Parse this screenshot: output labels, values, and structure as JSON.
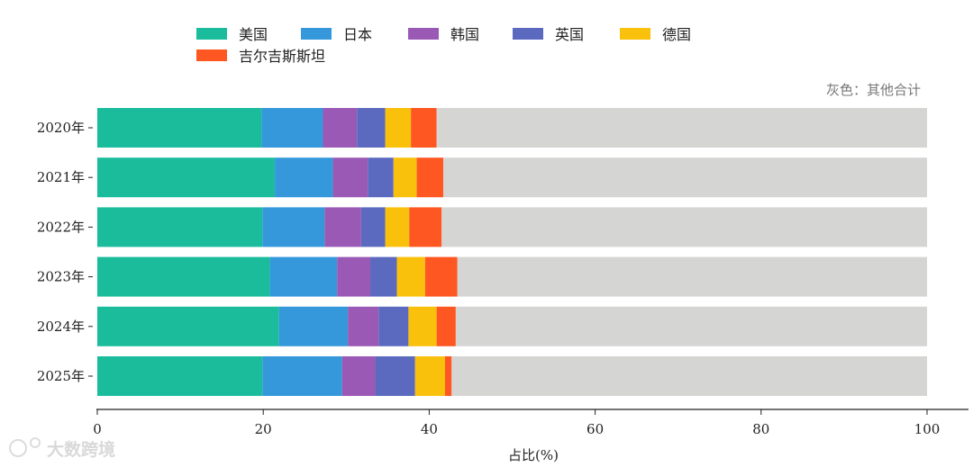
{
  "chart_data": {
    "type": "stacked-barh",
    "xlabel": "占比(%)",
    "xlim": [
      0,
      100
    ],
    "xticks": [
      0,
      20,
      40,
      60,
      80,
      100
    ],
    "note": "灰色：其他合计",
    "watermark": "大数跨境",
    "categories": [
      "2020年",
      "2021年",
      "2022年",
      "2023年",
      "2024年",
      "2025年"
    ],
    "series": [
      {
        "name": "美国",
        "color": "#1abc9c",
        "values": [
          19.8,
          21.4,
          19.9,
          20.8,
          21.9,
          19.9
        ]
      },
      {
        "name": "日本",
        "color": "#3498db",
        "values": [
          7.4,
          7.0,
          7.5,
          8.1,
          8.3,
          9.6
        ]
      },
      {
        "name": "韩国",
        "color": "#9b59b6",
        "values": [
          4.1,
          4.2,
          4.4,
          4.0,
          3.7,
          4.0
        ]
      },
      {
        "name": "英国",
        "color": "#5b6abf",
        "values": [
          3.4,
          3.1,
          2.9,
          3.2,
          3.6,
          4.8
        ]
      },
      {
        "name": "德国",
        "color": "#f9c00c",
        "values": [
          3.1,
          2.8,
          2.9,
          3.4,
          3.4,
          3.6
        ]
      },
      {
        "name": "吉尔吉斯斯坦",
        "color": "#fe5722",
        "values": [
          3.1,
          3.2,
          3.9,
          3.9,
          2.3,
          0.8
        ]
      },
      {
        "name": "其他合计",
        "color": "#d5d5d3",
        "values": [
          59.1,
          58.3,
          58.5,
          56.6,
          56.8,
          57.3
        ]
      }
    ]
  }
}
